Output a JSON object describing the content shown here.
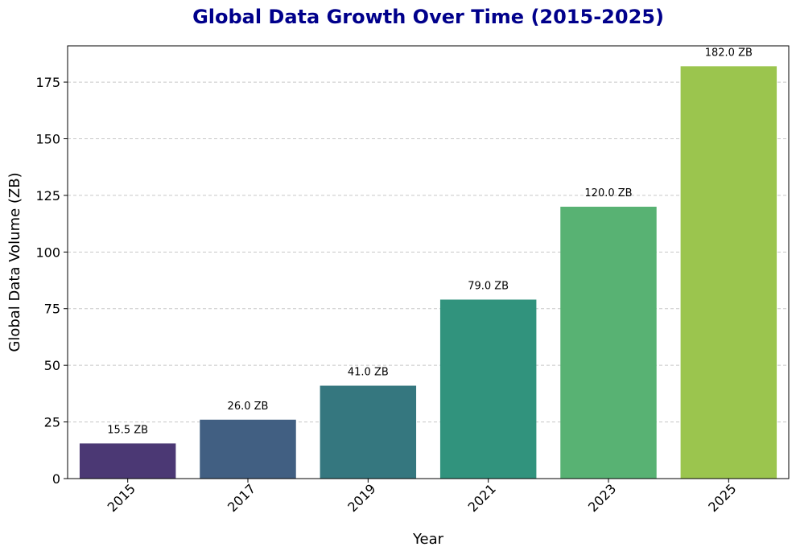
{
  "chart_data": {
    "type": "bar",
    "title": "Global Data Growth Over Time (2015-2025)",
    "xlabel": "Year",
    "ylabel": "Global Data Volume (ZB)",
    "categories": [
      "2015",
      "2017",
      "2019",
      "2021",
      "2023",
      "2025"
    ],
    "values": [
      15.5,
      26.0,
      41.0,
      79.0,
      120.0,
      182.0
    ],
    "data_labels": [
      "15.5 ZB",
      "26.0 ZB",
      "41.0 ZB",
      "79.0 ZB",
      "120.0 ZB",
      "182.0 ZB"
    ],
    "y_ticks": [
      "0",
      "25",
      "50",
      "75",
      "100",
      "125",
      "150",
      "175"
    ],
    "ylim": [
      0,
      191
    ],
    "grid": "y-dashed",
    "colors": {
      "title": "#00008b",
      "bars": [
        "#4b3874",
        "#415f82",
        "#35777f",
        "#31937d",
        "#58b273",
        "#9bc54e"
      ]
    }
  }
}
